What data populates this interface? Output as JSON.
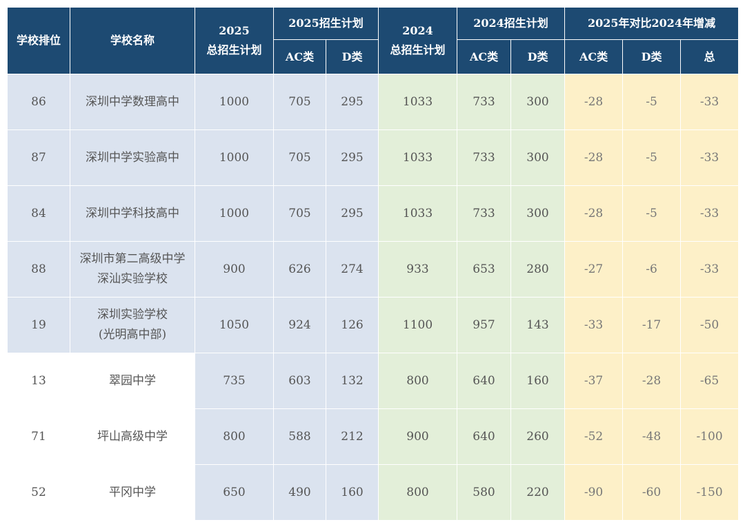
{
  "headers": {
    "rank": "学校排位",
    "name": "学校名称",
    "total2025": [
      "2025",
      "总招生计划"
    ],
    "plan2025": "2025招生计划",
    "total2024": [
      "2024",
      "总招生计划"
    ],
    "plan2024": "2024招生计划",
    "compare": "2025年对比2024年增减",
    "ac": "AC类",
    "d": "D类",
    "total": "总"
  },
  "rows": [
    {
      "rank": "86",
      "name": [
        "深圳中学数理高中"
      ],
      "t25": "1000",
      "ac25": "705",
      "d25": "295",
      "t24": "1033",
      "ac24": "733",
      "d24": "300",
      "dac": "-28",
      "dd": "-5",
      "dt": "-33"
    },
    {
      "rank": "87",
      "name": [
        "深圳中学实验高中"
      ],
      "t25": "1000",
      "ac25": "705",
      "d25": "295",
      "t24": "1033",
      "ac24": "733",
      "d24": "300",
      "dac": "-28",
      "dd": "-5",
      "dt": "-33"
    },
    {
      "rank": "84",
      "name": [
        "深圳中学科技高中"
      ],
      "t25": "1000",
      "ac25": "705",
      "d25": "295",
      "t24": "1033",
      "ac24": "733",
      "d24": "300",
      "dac": "-28",
      "dd": "-5",
      "dt": "-33"
    },
    {
      "rank": "88",
      "name": [
        "深圳市第二高级中学",
        "深汕实验学校"
      ],
      "t25": "900",
      "ac25": "626",
      "d25": "274",
      "t24": "933",
      "ac24": "653",
      "d24": "280",
      "dac": "-27",
      "dd": "-6",
      "dt": "-33"
    },
    {
      "rank": "19",
      "name": [
        "深圳实验学校",
        "(光明高中部)"
      ],
      "t25": "1050",
      "ac25": "924",
      "d25": "126",
      "t24": "1100",
      "ac24": "957",
      "d24": "143",
      "dac": "-33",
      "dd": "-17",
      "dt": "-50"
    },
    {
      "rank": "13",
      "name": [
        "翠园中学"
      ],
      "t25": "735",
      "ac25": "603",
      "d25": "132",
      "t24": "800",
      "ac24": "640",
      "d24": "160",
      "dac": "-37",
      "dd": "-28",
      "dt": "-65"
    },
    {
      "rank": "71",
      "name": [
        "坪山高级中学"
      ],
      "t25": "800",
      "ac25": "588",
      "d25": "212",
      "t24": "900",
      "ac24": "640",
      "d24": "260",
      "dac": "-52",
      "dd": "-48",
      "dt": "-100"
    },
    {
      "rank": "52",
      "name": [
        "平冈中学"
      ],
      "t25": "650",
      "ac25": "490",
      "d25": "160",
      "t24": "800",
      "ac24": "580",
      "d24": "220",
      "dac": "-90",
      "dd": "-60",
      "dt": "-150"
    }
  ],
  "colors": {
    "header": "#1d4a72",
    "plan2025": "#dbe3ef",
    "plan2024": "#e3efd9",
    "compare": "#fdf0c8"
  }
}
